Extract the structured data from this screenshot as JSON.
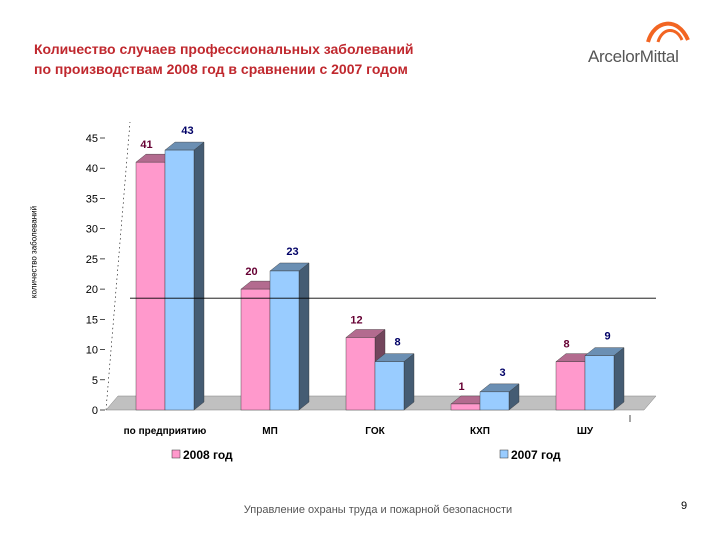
{
  "slide": {
    "title_line1": "Количество случаев профессиональных заболеваний",
    "title_line2": "по производствам 2008 год в сравнении с 2007 годом",
    "logo_text": "ArcelorMittal",
    "footer": "Управление охраны труда и пожарной безопасности",
    "page_number": "9"
  },
  "colors": {
    "title": "#c0282e",
    "logo_arc": "#f26522",
    "series_2008": "#ff99cc",
    "series_2007": "#99ccff"
  },
  "chart_data": {
    "type": "bar",
    "title": "",
    "xlabel": "",
    "ylabel": "количество заболеваний",
    "ylim": [
      0,
      45
    ],
    "yticks": [
      "0",
      "5",
      "10",
      "15",
      "20",
      "25",
      "30",
      "35",
      "40",
      "45"
    ],
    "categories": [
      "по предприятию",
      "МП",
      "ГОК",
      "КХП",
      "ШУ"
    ],
    "series": [
      {
        "name": "2008 год",
        "values": [
          41,
          20,
          12,
          1,
          8
        ]
      },
      {
        "name": "2007 год",
        "values": [
          43,
          23,
          8,
          3,
          9
        ]
      }
    ],
    "reference_line": 18.5,
    "legend_position": "bottom",
    "grid": false,
    "style": "3d"
  }
}
